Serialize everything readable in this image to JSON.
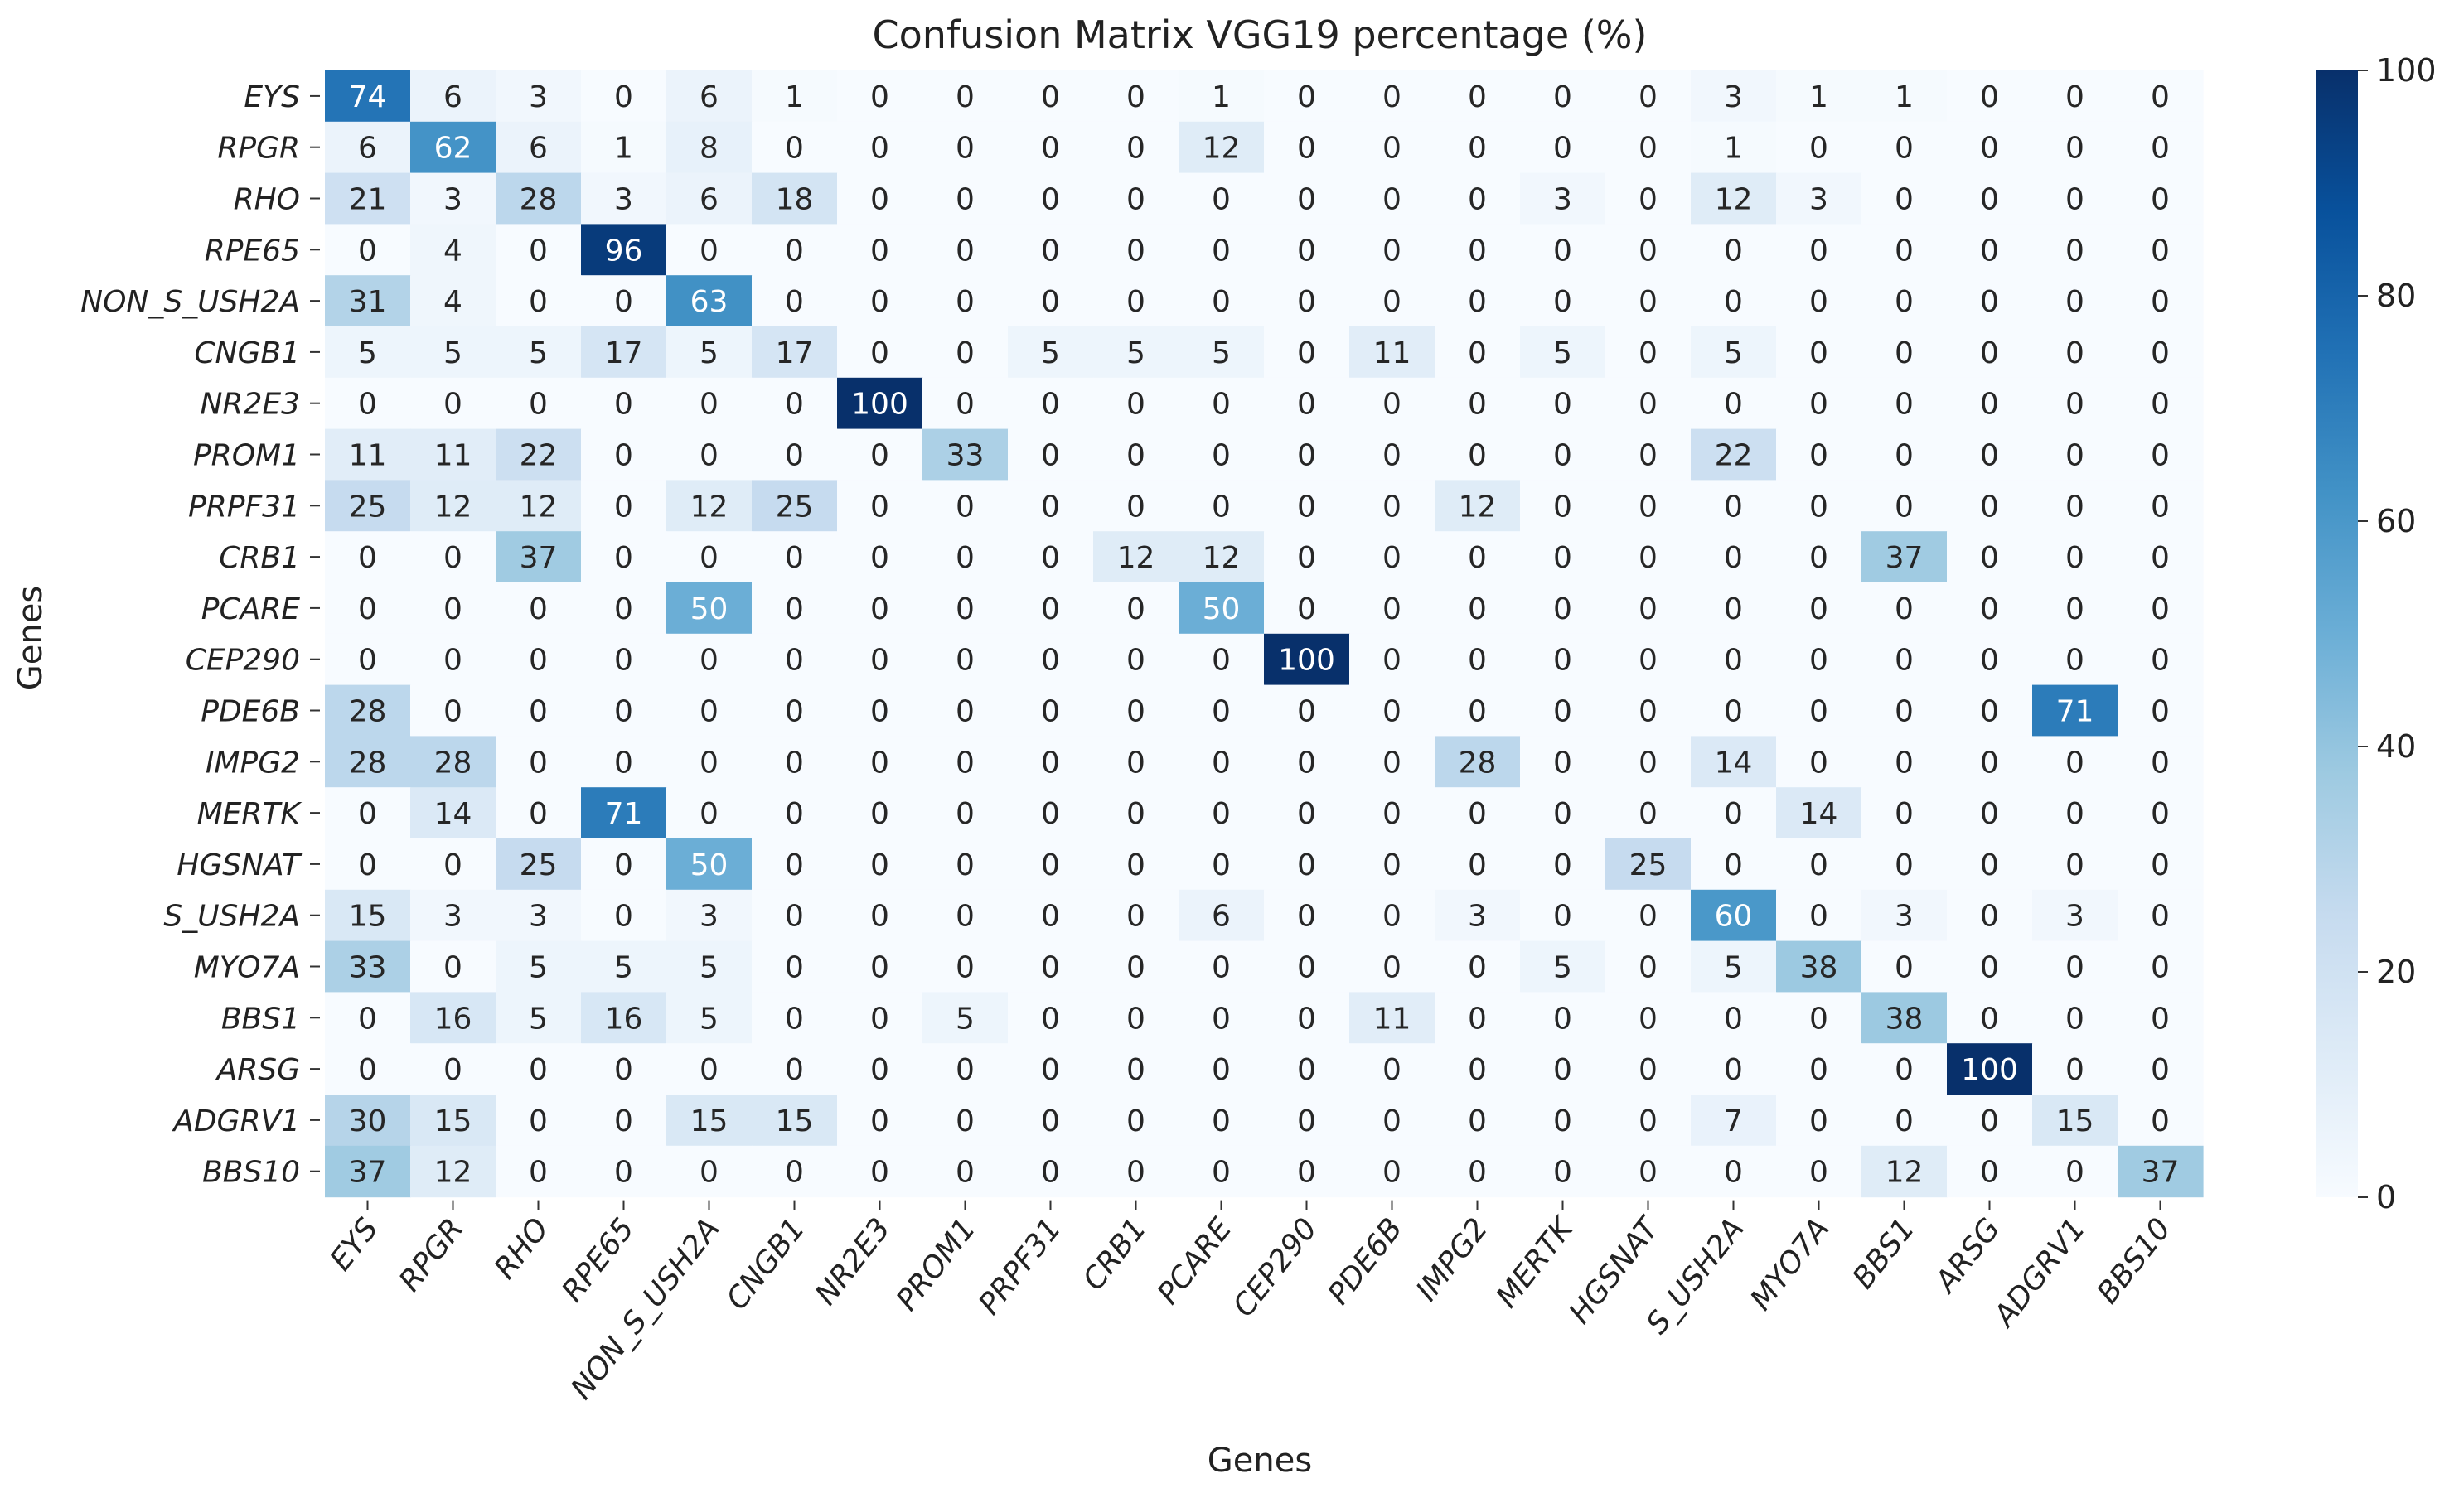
{
  "chart_data": {
    "type": "heatmap",
    "title": "Confusion Matrix VGG19 percentage (%)",
    "xlabel": "Genes",
    "ylabel": "Genes",
    "rows": [
      "EYS",
      "RPGR",
      "RHO",
      "RPE65",
      "NON_S_USH2A",
      "CNGB1",
      "NR2E3",
      "PROM1",
      "PRPF31",
      "CRB1",
      "PCARE",
      "CEP290",
      "PDE6B",
      "IMPG2",
      "MERTK",
      "HGSNAT",
      "S_USH2A",
      "MYO7A",
      "BBS1",
      "ARSG",
      "ADGRV1",
      "BBS10"
    ],
    "columns": [
      "EYS",
      "RPGR",
      "RHO",
      "RPE65",
      "NON_S_USH2A",
      "CNGB1",
      "NR2E3",
      "PROM1",
      "PRPF31",
      "CRB1",
      "PCARE",
      "CEP290",
      "PDE6B",
      "IMPG2",
      "MERTK",
      "HGSNAT",
      "S_USH2A",
      "MYO7A",
      "BBS1",
      "ARSG",
      "ADGRV1",
      "BBS10"
    ],
    "values": [
      [
        74,
        6,
        3,
        0,
        6,
        1,
        0,
        0,
        0,
        0,
        1,
        0,
        0,
        0,
        0,
        0,
        3,
        1,
        1,
        0,
        0,
        0
      ],
      [
        6,
        62,
        6,
        1,
        8,
        0,
        0,
        0,
        0,
        0,
        12,
        0,
        0,
        0,
        0,
        0,
        1,
        0,
        0,
        0,
        0,
        0
      ],
      [
        21,
        3,
        28,
        3,
        6,
        18,
        0,
        0,
        0,
        0,
        0,
        0,
        0,
        0,
        3,
        0,
        12,
        3,
        0,
        0,
        0,
        0
      ],
      [
        0,
        4,
        0,
        96,
        0,
        0,
        0,
        0,
        0,
        0,
        0,
        0,
        0,
        0,
        0,
        0,
        0,
        0,
        0,
        0,
        0,
        0
      ],
      [
        31,
        4,
        0,
        0,
        63,
        0,
        0,
        0,
        0,
        0,
        0,
        0,
        0,
        0,
        0,
        0,
        0,
        0,
        0,
        0,
        0,
        0
      ],
      [
        5,
        5,
        5,
        17,
        5,
        17,
        0,
        0,
        5,
        5,
        5,
        0,
        11,
        0,
        5,
        0,
        5,
        0,
        0,
        0,
        0,
        0
      ],
      [
        0,
        0,
        0,
        0,
        0,
        0,
        100,
        0,
        0,
        0,
        0,
        0,
        0,
        0,
        0,
        0,
        0,
        0,
        0,
        0,
        0,
        0
      ],
      [
        11,
        11,
        22,
        0,
        0,
        0,
        0,
        33,
        0,
        0,
        0,
        0,
        0,
        0,
        0,
        0,
        22,
        0,
        0,
        0,
        0,
        0
      ],
      [
        25,
        12,
        12,
        0,
        12,
        25,
        0,
        0,
        0,
        0,
        0,
        0,
        0,
        12,
        0,
        0,
        0,
        0,
        0,
        0,
        0,
        0
      ],
      [
        0,
        0,
        37,
        0,
        0,
        0,
        0,
        0,
        0,
        12,
        12,
        0,
        0,
        0,
        0,
        0,
        0,
        0,
        37,
        0,
        0,
        0
      ],
      [
        0,
        0,
        0,
        0,
        50,
        0,
        0,
        0,
        0,
        0,
        50,
        0,
        0,
        0,
        0,
        0,
        0,
        0,
        0,
        0,
        0,
        0
      ],
      [
        0,
        0,
        0,
        0,
        0,
        0,
        0,
        0,
        0,
        0,
        0,
        100,
        0,
        0,
        0,
        0,
        0,
        0,
        0,
        0,
        0,
        0
      ],
      [
        28,
        0,
        0,
        0,
        0,
        0,
        0,
        0,
        0,
        0,
        0,
        0,
        0,
        0,
        0,
        0,
        0,
        0,
        0,
        0,
        71,
        0
      ],
      [
        28,
        28,
        0,
        0,
        0,
        0,
        0,
        0,
        0,
        0,
        0,
        0,
        0,
        28,
        0,
        0,
        14,
        0,
        0,
        0,
        0,
        0
      ],
      [
        0,
        14,
        0,
        71,
        0,
        0,
        0,
        0,
        0,
        0,
        0,
        0,
        0,
        0,
        0,
        0,
        0,
        14,
        0,
        0,
        0,
        0
      ],
      [
        0,
        0,
        25,
        0,
        50,
        0,
        0,
        0,
        0,
        0,
        0,
        0,
        0,
        0,
        0,
        25,
        0,
        0,
        0,
        0,
        0,
        0
      ],
      [
        15,
        3,
        3,
        0,
        3,
        0,
        0,
        0,
        0,
        0,
        6,
        0,
        0,
        3,
        0,
        0,
        60,
        0,
        3,
        0,
        3,
        0
      ],
      [
        33,
        0,
        5,
        5,
        5,
        0,
        0,
        0,
        0,
        0,
        0,
        0,
        0,
        0,
        5,
        0,
        5,
        38,
        0,
        0,
        0,
        0
      ],
      [
        0,
        16,
        5,
        16,
        5,
        0,
        0,
        5,
        0,
        0,
        0,
        0,
        11,
        0,
        0,
        0,
        0,
        0,
        38,
        0,
        0,
        0
      ],
      [
        0,
        0,
        0,
        0,
        0,
        0,
        0,
        0,
        0,
        0,
        0,
        0,
        0,
        0,
        0,
        0,
        0,
        0,
        0,
        100,
        0,
        0
      ],
      [
        30,
        15,
        0,
        0,
        15,
        15,
        0,
        0,
        0,
        0,
        0,
        0,
        0,
        0,
        0,
        0,
        7,
        0,
        0,
        0,
        15,
        0
      ],
      [
        37,
        12,
        0,
        0,
        0,
        0,
        0,
        0,
        0,
        0,
        0,
        0,
        0,
        0,
        0,
        0,
        0,
        0,
        12,
        0,
        0,
        37
      ]
    ],
    "vmin": 0,
    "vmax": 100,
    "colormap": "Blues",
    "colorbar_ticks": [
      0,
      20,
      40,
      60,
      80,
      100
    ],
    "annotations": "cell values shown in each cell"
  },
  "colors": {
    "low": "#f7fbff",
    "high": "#08306b",
    "text_dark": "#262626",
    "text_light": "#ffffff"
  }
}
